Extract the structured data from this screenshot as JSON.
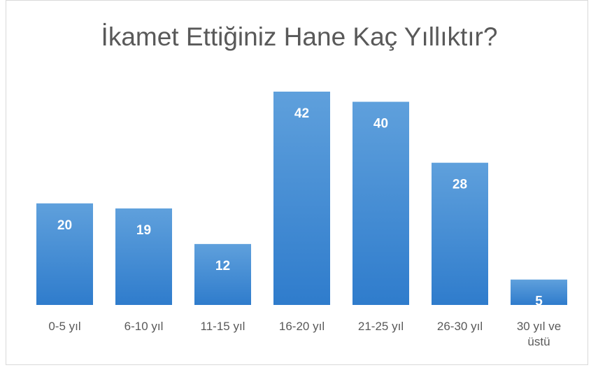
{
  "chart_data": {
    "type": "bar",
    "title": "İkamet Ettiğiniz Hane Kaç Yıllıktır?",
    "categories": [
      "0-5 yıl",
      "6-10 yıl",
      "11-15 yıl",
      "16-20 yıl",
      "21-25 yıl",
      "26-30 yıl",
      "30 yıl ve üstü"
    ],
    "values": [
      20,
      19,
      12,
      42,
      40,
      28,
      5
    ],
    "color": "#5b9bd5"
  }
}
